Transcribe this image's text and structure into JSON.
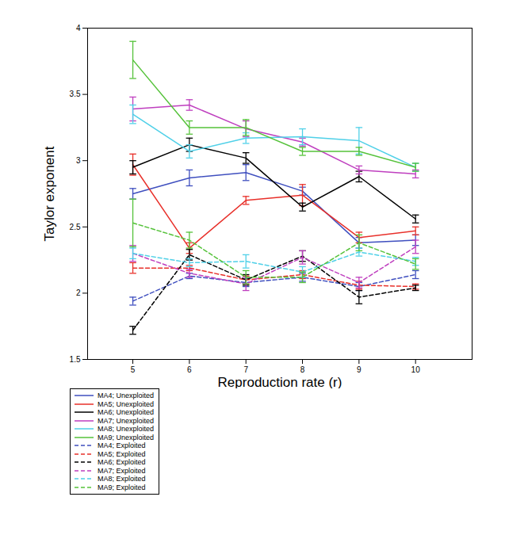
{
  "chart_data": {
    "type": "line",
    "x_label": "Reproduction rate (r)",
    "y_label": "Taylor exponent",
    "x": [
      5,
      6,
      7,
      8,
      9,
      10
    ],
    "xlim": [
      4.2,
      11
    ],
    "xticks": [
      5,
      6,
      7,
      8,
      9,
      10
    ],
    "ylim": [
      1.5,
      4
    ],
    "yticks": [
      1.5,
      2,
      2.5,
      3,
      3.5,
      4
    ],
    "grid": false,
    "legend": "bottom-left",
    "series": [
      {
        "name": "MA4; Unexploited",
        "color": "#3f4fbf",
        "line_style": "solid",
        "values": [
          2.75,
          2.87,
          2.91,
          2.77,
          2.38,
          2.4
        ],
        "errors": [
          0.04,
          0.06,
          0.06,
          0.03,
          0.04,
          0.04
        ]
      },
      {
        "name": "MA5; Unexploited",
        "color": "#e8302a",
        "line_style": "solid",
        "values": [
          2.97,
          2.34,
          2.7,
          2.74,
          2.42,
          2.47
        ],
        "errors": [
          0.08,
          0.04,
          0.03,
          0.08,
          0.04,
          0.03
        ]
      },
      {
        "name": "MA6; Unexploited",
        "color": "#000000",
        "line_style": "solid",
        "values": [
          2.95,
          3.12,
          3.02,
          2.65,
          2.88,
          2.56
        ],
        "errors": [
          0.05,
          0.05,
          0.04,
          0.03,
          0.04,
          0.03
        ]
      },
      {
        "name": "MA7; Unexploited",
        "color": "#bf3fbf",
        "line_style": "solid",
        "values": [
          3.39,
          3.42,
          3.24,
          3.14,
          2.93,
          2.9
        ],
        "errors": [
          0.09,
          0.04,
          0.06,
          0.03,
          0.03,
          0.03
        ]
      },
      {
        "name": "MA8; Unexploited",
        "color": "#4fd0e8",
        "line_style": "solid",
        "values": [
          3.35,
          3.07,
          3.17,
          3.18,
          3.15,
          2.95
        ],
        "errors": [
          0.07,
          0.05,
          0.04,
          0.06,
          0.1,
          0.03
        ]
      },
      {
        "name": "MA9; Unexploited",
        "color": "#55c23a",
        "line_style": "solid",
        "values": [
          3.76,
          3.25,
          3.25,
          3.07,
          3.07,
          2.95
        ],
        "errors": [
          0.14,
          0.05,
          0.06,
          0.03,
          0.03,
          0.03
        ]
      },
      {
        "name": "MA4; Exploited",
        "color": "#3f4fbf",
        "line_style": "dashed",
        "values": [
          1.94,
          2.13,
          2.08,
          2.12,
          2.05,
          2.14
        ],
        "errors": [
          0.03,
          0.02,
          0.03,
          0.03,
          0.03,
          0.03
        ]
      },
      {
        "name": "MA5; Exploited",
        "color": "#e8302a",
        "line_style": "dashed",
        "values": [
          2.19,
          2.19,
          2.1,
          2.14,
          2.06,
          2.05
        ],
        "errors": [
          0.04,
          0.02,
          0.03,
          0.03,
          0.03,
          0.02
        ]
      },
      {
        "name": "MA6; Exploited",
        "color": "#000000",
        "line_style": "dashed",
        "values": [
          1.72,
          2.29,
          2.1,
          2.28,
          1.97,
          2.04
        ],
        "errors": [
          0.03,
          0.04,
          0.04,
          0.04,
          0.05,
          0.02
        ]
      },
      {
        "name": "MA7; Exploited",
        "color": "#bf3fbf",
        "line_style": "dashed",
        "values": [
          2.3,
          2.15,
          2.07,
          2.27,
          2.08,
          2.35
        ],
        "errors": [
          0.06,
          0.03,
          0.05,
          0.05,
          0.04,
          0.05
        ]
      },
      {
        "name": "MA8; Exploited",
        "color": "#4fd0e8",
        "line_style": "dashed",
        "values": [
          2.3,
          2.23,
          2.24,
          2.16,
          2.31,
          2.24
        ],
        "errors": [
          0.04,
          0.03,
          0.05,
          0.04,
          0.03,
          0.03
        ]
      },
      {
        "name": "MA9; Exploited",
        "color": "#55c23a",
        "line_style": "dashed",
        "values": [
          2.53,
          2.4,
          2.12,
          2.12,
          2.38,
          2.22
        ],
        "errors": [
          0.18,
          0.06,
          0.05,
          0.04,
          0.06,
          0.04
        ]
      }
    ]
  }
}
